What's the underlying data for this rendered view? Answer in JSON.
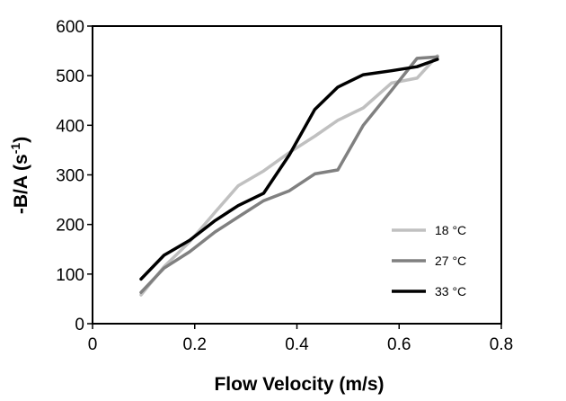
{
  "chart_data": {
    "type": "line",
    "xlabel": "Flow Velocity (m/s)",
    "ylabel_main": "-B/A (s",
    "ylabel_sup": "-1",
    "ylabel_close": ")",
    "xlim": [
      0,
      0.8
    ],
    "ylim": [
      0,
      600
    ],
    "x_ticks": [
      0,
      0.2,
      0.4,
      0.6,
      0.8
    ],
    "x_tick_labels": [
      "0",
      "0.2",
      "0.4",
      "0.6",
      "0.8"
    ],
    "y_ticks": [
      0,
      100,
      200,
      300,
      400,
      500,
      600
    ],
    "y_tick_labels": [
      "0",
      "100",
      "200",
      "300",
      "400",
      "500",
      "600"
    ],
    "grid": false,
    "legend_position": "bottom-right",
    "series": [
      {
        "name": "18 °C",
        "color": "#c0c0c0",
        "points": [
          [
            0.095,
            58
          ],
          [
            0.14,
            115
          ],
          [
            0.19,
            165
          ],
          [
            0.24,
            225
          ],
          [
            0.285,
            278
          ],
          [
            0.335,
            308
          ],
          [
            0.385,
            345
          ],
          [
            0.435,
            378
          ],
          [
            0.48,
            410
          ],
          [
            0.53,
            435
          ],
          [
            0.585,
            485
          ],
          [
            0.635,
            495
          ],
          [
            0.675,
            540
          ]
        ]
      },
      {
        "name": "27 °C",
        "color": "#808080",
        "points": [
          [
            0.095,
            63
          ],
          [
            0.14,
            112
          ],
          [
            0.19,
            145
          ],
          [
            0.24,
            185
          ],
          [
            0.285,
            215
          ],
          [
            0.335,
            248
          ],
          [
            0.385,
            268
          ],
          [
            0.435,
            302
          ],
          [
            0.48,
            310
          ],
          [
            0.53,
            400
          ],
          [
            0.585,
            470
          ],
          [
            0.635,
            535
          ],
          [
            0.675,
            538
          ]
        ]
      },
      {
        "name": "33 °C",
        "color": "#000000",
        "points": [
          [
            0.095,
            90
          ],
          [
            0.14,
            138
          ],
          [
            0.19,
            168
          ],
          [
            0.24,
            208
          ],
          [
            0.285,
            238
          ],
          [
            0.335,
            263
          ],
          [
            0.385,
            340
          ],
          [
            0.435,
            432
          ],
          [
            0.48,
            477
          ],
          [
            0.53,
            502
          ],
          [
            0.585,
            510
          ],
          [
            0.635,
            518
          ],
          [
            0.675,
            533
          ]
        ]
      }
    ]
  }
}
